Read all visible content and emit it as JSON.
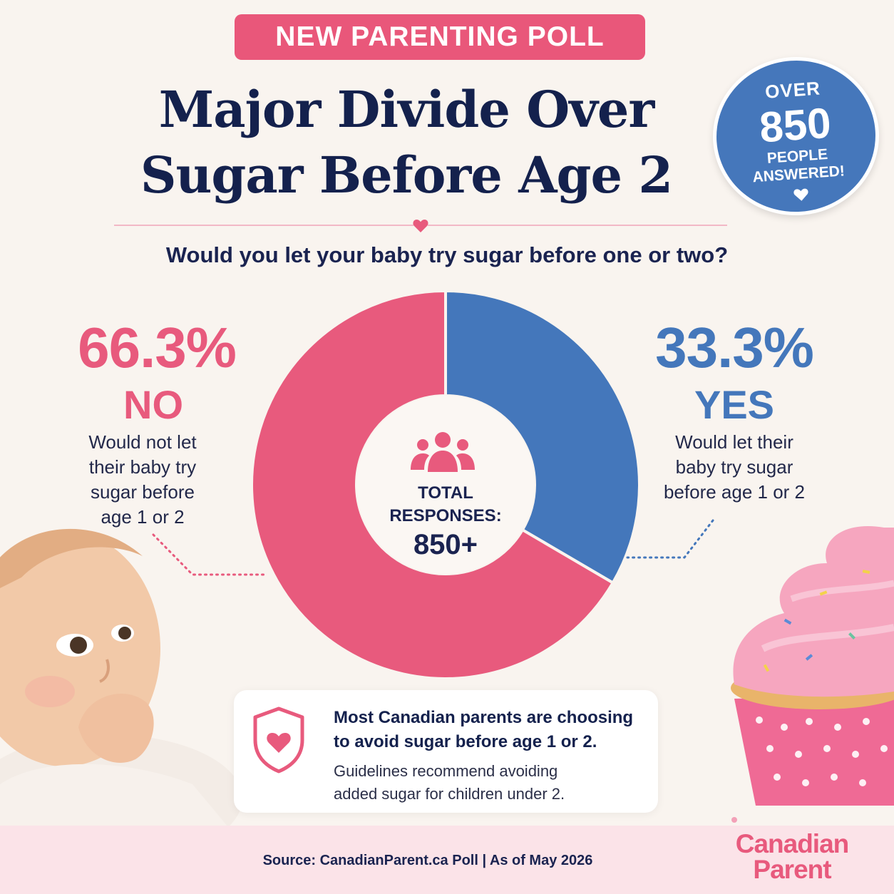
{
  "header": {
    "tag": "NEW PARENTING POLL",
    "title_line1": "Major Divide Over",
    "title_line2": "Sugar Before Age 2",
    "question": "Would you let your baby try sugar before one or two?"
  },
  "badge": {
    "over": "OVER",
    "count": "850",
    "line1": "PEOPLE",
    "line2": "ANSWERED!",
    "icon": "heart-icon"
  },
  "results": {
    "no": {
      "percent": "66.3%",
      "label": "NO",
      "desc": [
        "Would not let",
        "their baby try",
        "sugar before",
        "age 1 or 2"
      ]
    },
    "yes": {
      "percent": "33.3%",
      "label": "YES",
      "desc": [
        "Would let their",
        "baby try sugar",
        "before age 1 or 2"
      ]
    }
  },
  "center": {
    "icon": "people-icon",
    "label_line1": "TOTAL",
    "label_line2": "RESPONSES:",
    "value": "850+"
  },
  "callout": {
    "icon": "shield-heart-icon",
    "headline_line1": "Most Canadian parents are choosing",
    "headline_line2": "to avoid sugar before age 1 or 2.",
    "body_line1": "Guidelines recommend avoiding",
    "body_line2": "added sugar for children under 2."
  },
  "footer": {
    "source": "Source: CanadianParent.ca Poll  |  As of May 2026",
    "brand_line1": "Canadian",
    "brand_line2": "Parent"
  },
  "colors": {
    "background": "#f9f4ef",
    "pink": "#e85a7d",
    "blue": "#4477bb",
    "navy": "#14214d"
  },
  "chart_data": {
    "type": "pie",
    "categories": [
      "NO",
      "YES"
    ],
    "values": [
      66.3,
      33.3
    ],
    "colors": [
      "#e85a7d",
      "#4477bb"
    ],
    "title": "Would you let your baby try sugar before one or two?",
    "legend": "none",
    "center_label": "TOTAL RESPONSES: 850+"
  }
}
